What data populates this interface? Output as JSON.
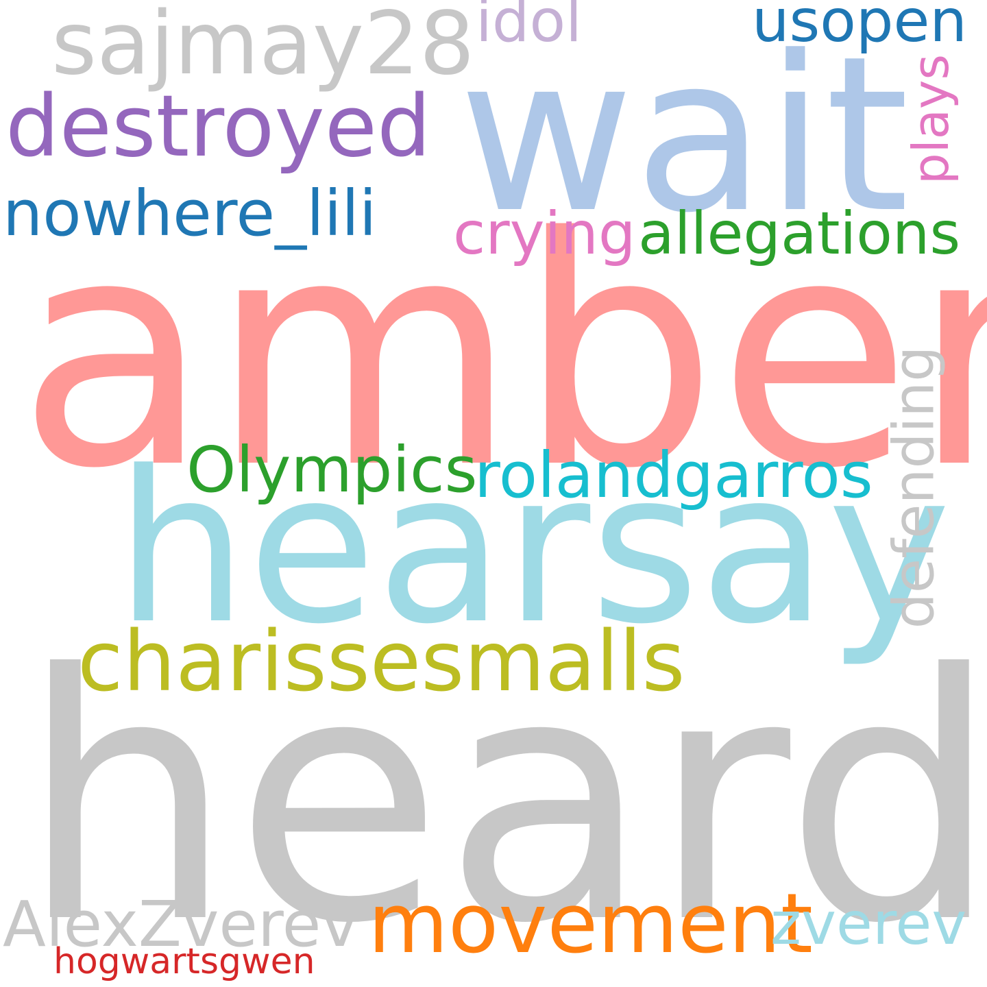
{
  "words": {
    "heard": {
      "text": "heard",
      "color": "#c7c7c7"
    },
    "amber": {
      "text": "amber",
      "color": "#ff9896"
    },
    "wait": {
      "text": "wait",
      "color": "#aec7e8"
    },
    "hearsay": {
      "text": "hearsay",
      "color": "#9edae5"
    },
    "sajmay28": {
      "text": "sajmay28",
      "color": "#c7c7c7"
    },
    "destroyed": {
      "text": "destroyed",
      "color": "#9467bd"
    },
    "charissesmalls": {
      "text": "charissesmalls",
      "color": "#bcbd22"
    },
    "movement": {
      "text": "movement",
      "color": "#ff7f0e"
    },
    "rolandgarros": {
      "text": "rolandgarros",
      "color": "#17becf"
    },
    "olympics": {
      "text": "Olympics",
      "color": "#2ca02c"
    },
    "nowhere_lili": {
      "text": "nowhere_lili",
      "color": "#1f77b4"
    },
    "alexzverev": {
      "text": "AlexZverev",
      "color": "#c7c7c7"
    },
    "allegations": {
      "text": "allegations",
      "color": "#2ca02c"
    },
    "crying": {
      "text": "crying",
      "color": "#e377c2"
    },
    "zverev": {
      "text": "zverev",
      "color": "#9edae5"
    },
    "usopen": {
      "text": "usopen",
      "color": "#1f77b4"
    },
    "idol": {
      "text": "idol",
      "color": "#c5b0d5"
    },
    "defending": {
      "text": "defending",
      "color": "#c7c7c7"
    },
    "plays": {
      "text": "plays",
      "color": "#e377c2"
    },
    "hogwartsgwen": {
      "text": "hogwartsgwen",
      "color": "#d62728"
    }
  }
}
